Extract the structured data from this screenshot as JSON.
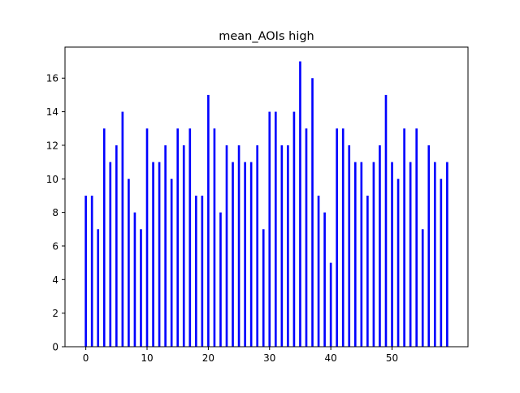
{
  "chart_data": {
    "type": "bar",
    "title": "mean_AOIs high",
    "xlabel": "",
    "ylabel": "",
    "x": [
      0,
      1,
      2,
      3,
      4,
      5,
      6,
      7,
      8,
      9,
      10,
      11,
      12,
      13,
      14,
      15,
      16,
      17,
      18,
      19,
      20,
      21,
      22,
      23,
      24,
      25,
      26,
      27,
      28,
      29,
      30,
      31,
      32,
      33,
      34,
      35,
      36,
      37,
      38,
      39,
      40,
      41,
      42,
      43,
      44,
      45,
      46,
      47,
      48,
      49,
      50,
      51,
      52,
      53,
      54,
      55,
      56,
      57,
      58,
      59
    ],
    "values": [
      9,
      9,
      7,
      13,
      11,
      12,
      14,
      10,
      8,
      7,
      13,
      11,
      11,
      12,
      10,
      13,
      12,
      13,
      9,
      9,
      15,
      13,
      8,
      12,
      11,
      12,
      11,
      11,
      12,
      7,
      14,
      14,
      12,
      12,
      14,
      17,
      13,
      16,
      9,
      8,
      5,
      13,
      13,
      12,
      11,
      11,
      9,
      11,
      12,
      15,
      11,
      10,
      13,
      11,
      13,
      7,
      12,
      11,
      10,
      11
    ],
    "xlim": [
      -3.4,
      62.4
    ],
    "ylim": [
      0,
      17.85
    ],
    "xticks": [
      0,
      10,
      20,
      30,
      40,
      50
    ],
    "xtick_labels": [
      "0",
      "10",
      "20",
      "30",
      "40",
      "50"
    ],
    "yticks": [
      0,
      2,
      4,
      6,
      8,
      10,
      12,
      14,
      16
    ],
    "ytick_labels": [
      "0",
      "2",
      "4",
      "6",
      "8",
      "10",
      "12",
      "14",
      "16"
    ],
    "bar_color": "#0000ff",
    "grid": false,
    "legend": "none"
  }
}
